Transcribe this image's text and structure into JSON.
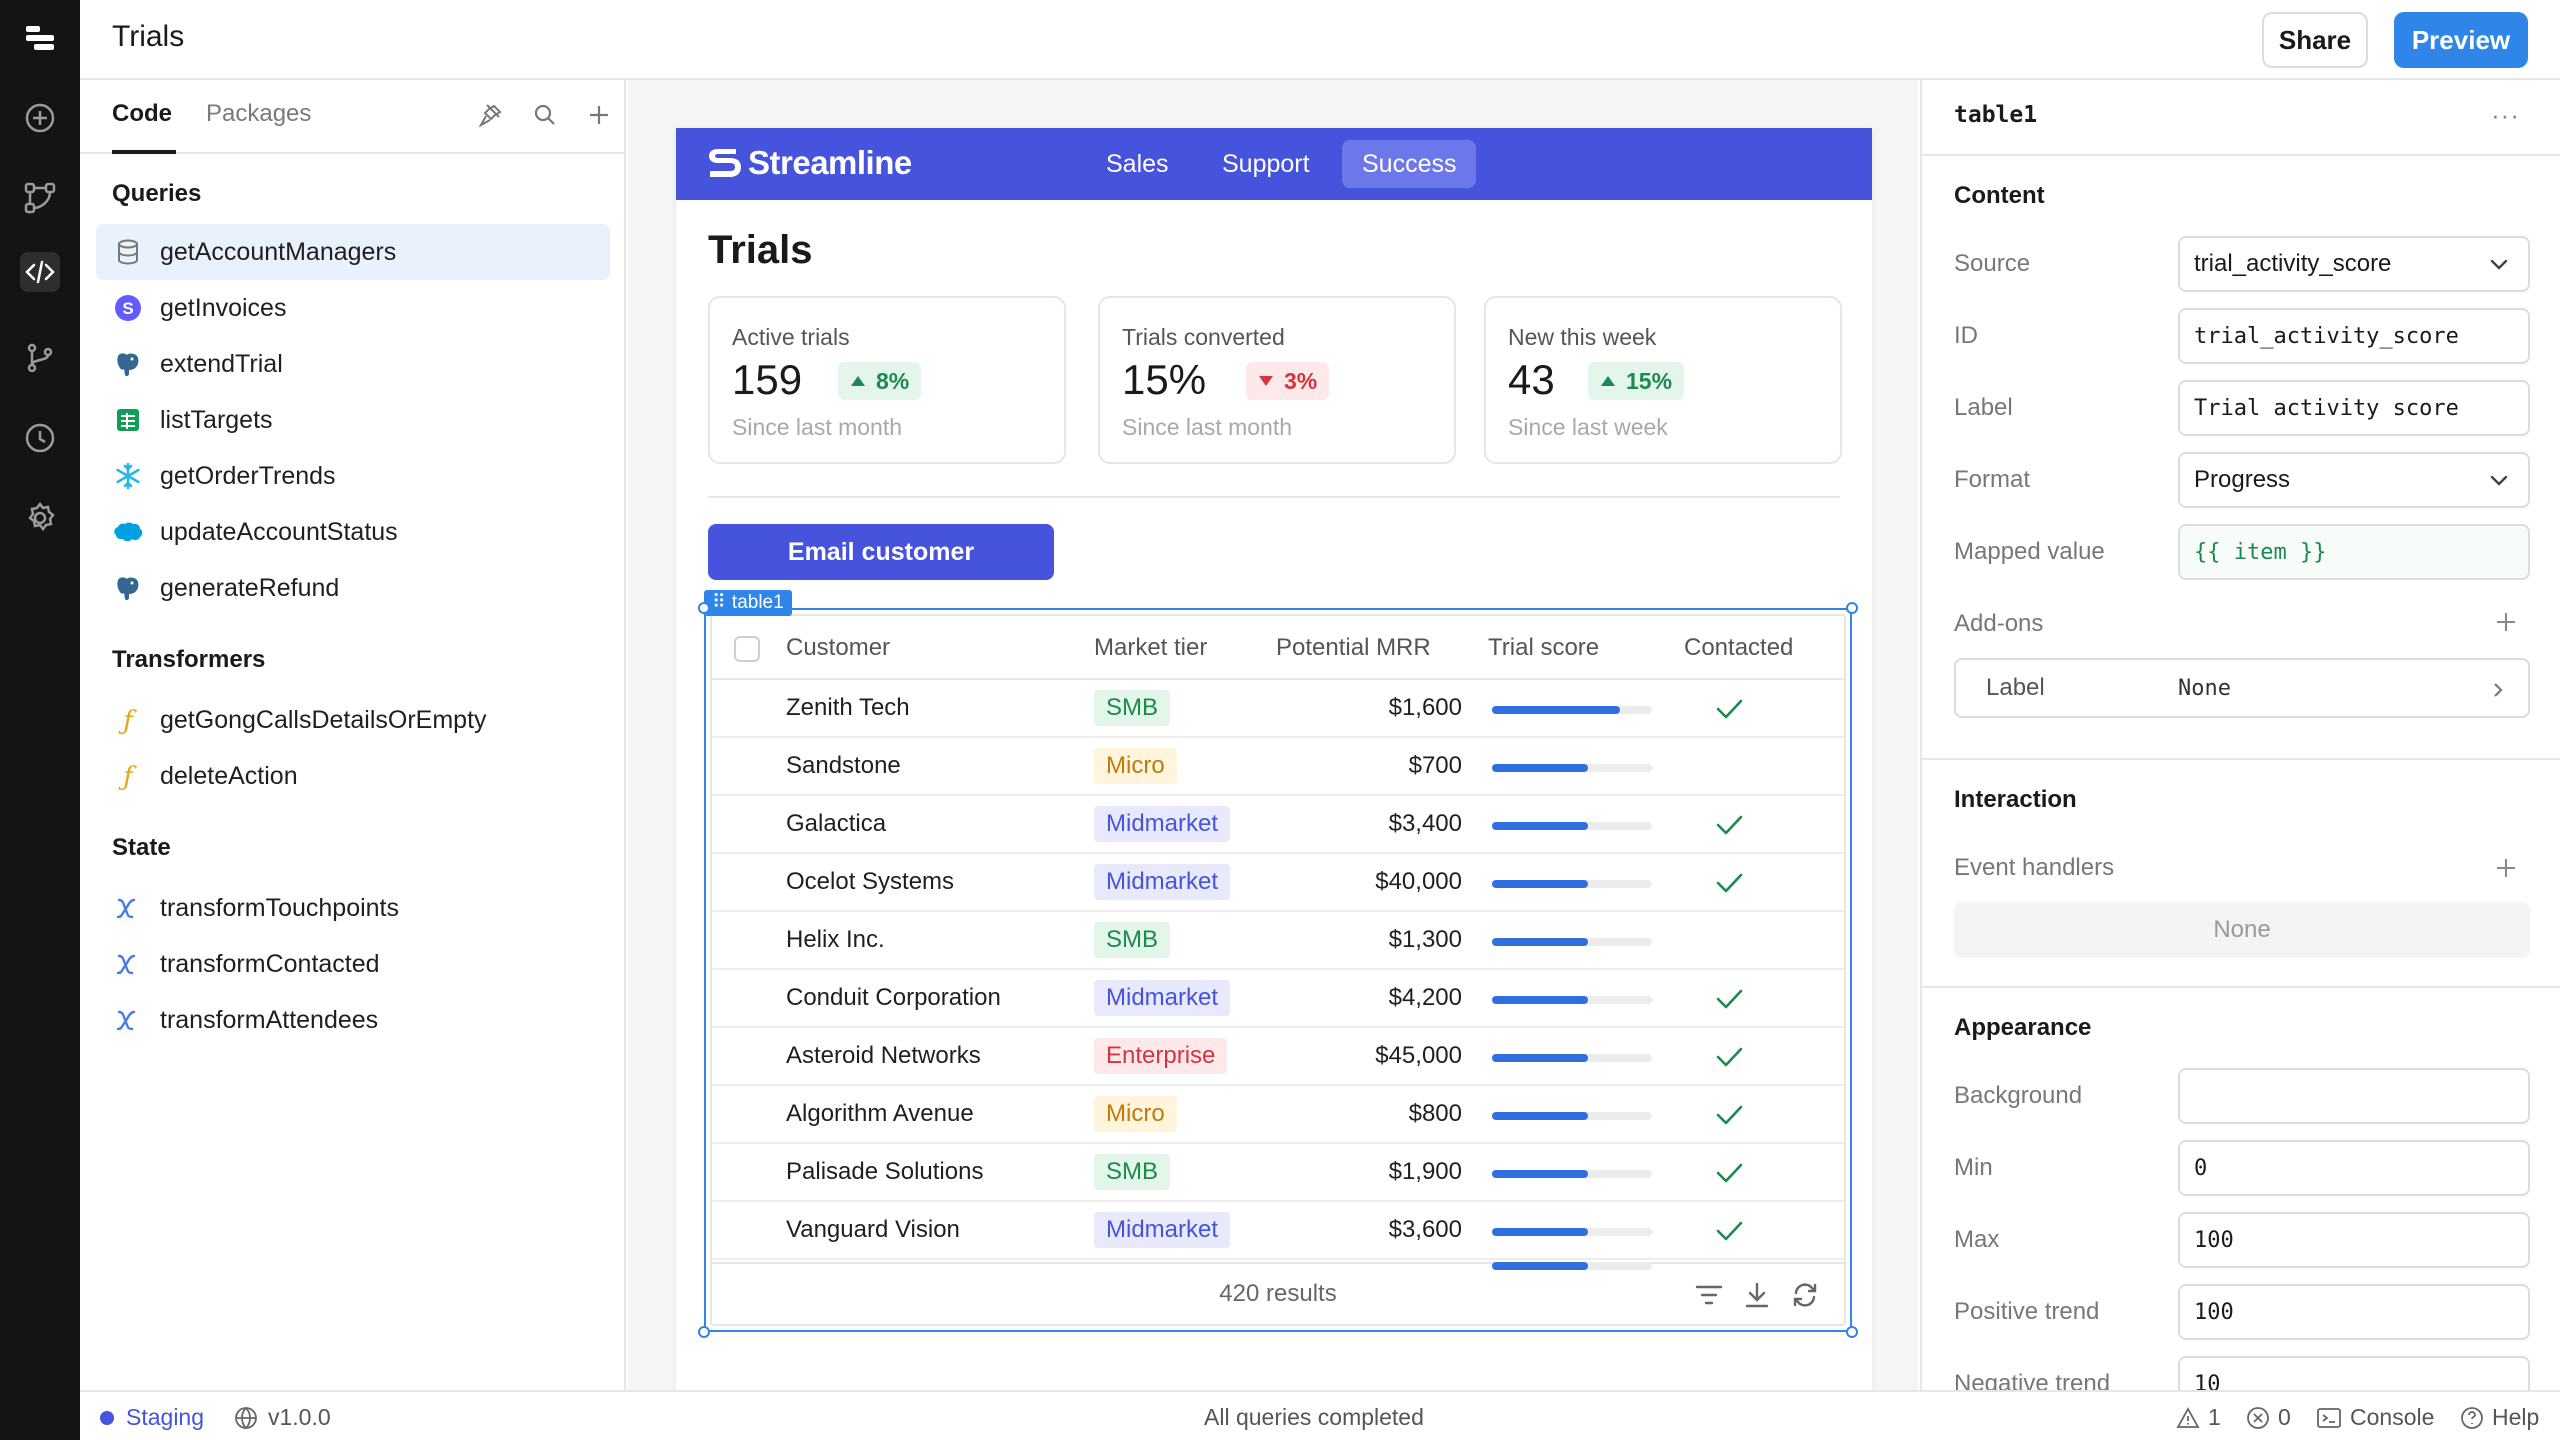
{
  "app": {
    "title": "Trials"
  },
  "header": {
    "share_label": "Share",
    "preview_label": "Preview"
  },
  "rail": {
    "icons": [
      "logo-icon",
      "add-circle-icon",
      "workflow-icon",
      "code-icon",
      "branch-icon",
      "history-icon",
      "settings-icon"
    ]
  },
  "left_panel": {
    "tabs": [
      {
        "label": "Code"
      },
      {
        "label": "Packages"
      }
    ],
    "sections": {
      "queries": "Queries",
      "transformers": "Transformers",
      "state": "State"
    },
    "queries": [
      {
        "label": "getAccountManagers",
        "icon": "database-icon"
      },
      {
        "label": "getInvoices",
        "icon": "stripe-icon"
      },
      {
        "label": "extendTrial",
        "icon": "postgres-icon"
      },
      {
        "label": "listTargets",
        "icon": "sheets-icon"
      },
      {
        "label": "getOrderTrends",
        "icon": "snowflake-icon"
      },
      {
        "label": "updateAccountStatus",
        "icon": "salesforce-icon"
      },
      {
        "label": "generateRefund",
        "icon": "postgres-icon"
      }
    ],
    "transformers": [
      {
        "label": "getGongCallsDetailsOrEmpty"
      },
      {
        "label": "deleteAction"
      }
    ],
    "state": [
      {
        "label": "transformTouchpoints"
      },
      {
        "label": "transformContacted"
      },
      {
        "label": "transformAttendees"
      }
    ]
  },
  "preview_app": {
    "brand": "Streamline",
    "nav": [
      {
        "label": "Sales"
      },
      {
        "label": "Support"
      },
      {
        "label": "Success"
      }
    ],
    "page_title": "Trials",
    "stats": [
      {
        "label": "Active trials",
        "value": "159",
        "trend": "8%",
        "direction": "up",
        "sub": "Since last month"
      },
      {
        "label": "Trials converted",
        "value": "15%",
        "trend": "3%",
        "direction": "down",
        "sub": "Since last month"
      },
      {
        "label": "New this week",
        "value": "43",
        "trend": "15%",
        "direction": "up",
        "sub": "Since last week"
      }
    ],
    "email_button": "Email customer",
    "selected_component": "table1",
    "table": {
      "columns": [
        "Customer",
        "Market tier",
        "Potential MRR",
        "Trial score",
        "Contacted"
      ],
      "rows": [
        {
          "customer": "Zenith Tech",
          "tier": "SMB",
          "mrr": "$1,600",
          "score": 0.8,
          "contacted": true
        },
        {
          "customer": "Sandstone",
          "tier": "Micro",
          "mrr": "$700",
          "score": 0.6,
          "contacted": false
        },
        {
          "customer": "Galactica",
          "tier": "Midmarket",
          "mrr": "$3,400",
          "score": 0.6,
          "contacted": true
        },
        {
          "customer": "Ocelot Systems",
          "tier": "Midmarket",
          "mrr": "$40,000",
          "score": 0.6,
          "contacted": true
        },
        {
          "customer": "Helix Inc.",
          "tier": "SMB",
          "mrr": "$1,300",
          "score": 0.6,
          "contacted": false
        },
        {
          "customer": "Conduit Corporation",
          "tier": "Midmarket",
          "mrr": "$4,200",
          "score": 0.6,
          "contacted": true
        },
        {
          "customer": "Asteroid Networks",
          "tier": "Enterprise",
          "mrr": "$45,000",
          "score": 0.6,
          "contacted": true
        },
        {
          "customer": "Algorithm Avenue",
          "tier": "Micro",
          "mrr": "$800",
          "score": 0.6,
          "contacted": true
        },
        {
          "customer": "Palisade Solutions",
          "tier": "SMB",
          "mrr": "$1,900",
          "score": 0.6,
          "contacted": true
        },
        {
          "customer": "Vanguard Vision",
          "tier": "Midmarket",
          "mrr": "$3,600",
          "score": 0.6,
          "contacted": true
        }
      ],
      "footer_score": 0.6,
      "results": "420 results"
    }
  },
  "inspector": {
    "component": "table1",
    "content": {
      "title": "Content",
      "source_label": "Source",
      "source_value": "trial_activity_score",
      "id_label": "ID",
      "id_value": "trial_activity_score",
      "label_label": "Label",
      "label_value": "Trial activity score",
      "format_label": "Format",
      "format_value": "Progress",
      "mapped_label": "Mapped value",
      "mapped_value": "{{ item }}",
      "addons_label": "Add-ons",
      "addon_name": "Label",
      "addon_value": "None"
    },
    "interaction": {
      "title": "Interaction",
      "event_handlers_label": "Event handlers",
      "none": "None"
    },
    "appearance": {
      "title": "Appearance",
      "background_label": "Background",
      "background_value": "",
      "min_label": "Min",
      "min_value": "0",
      "max_label": "Max",
      "max_value": "100",
      "positive_label": "Positive trend",
      "positive_value": "100",
      "negative_label": "Negative trend",
      "negative_value": "10"
    }
  },
  "status_bar": {
    "environment": "Staging",
    "version": "v1.0.0",
    "message": "All queries completed",
    "warnings": "1",
    "errors": "0",
    "console": "Console",
    "help": "Help"
  },
  "colors": {
    "accent": "#2f86e8",
    "app_primary": "#4653dc",
    "success": "#1c8a4e",
    "danger": "#d8333f",
    "warning": "#c27a0a"
  }
}
